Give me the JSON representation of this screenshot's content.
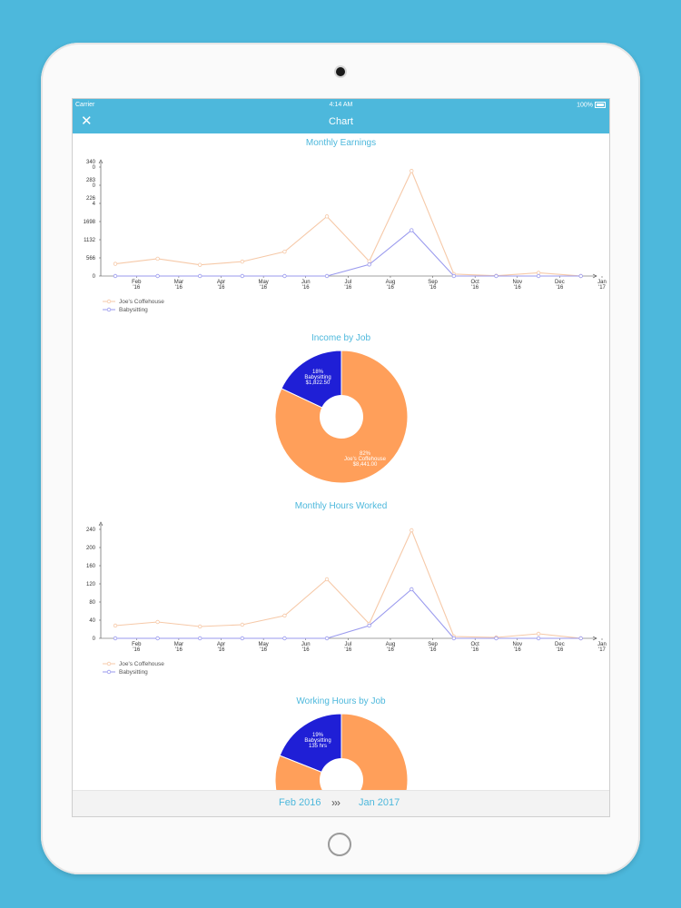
{
  "status_bar": {
    "carrier": "Carrier",
    "time": "4:14 AM",
    "battery": "100%"
  },
  "nav": {
    "title": "Chart",
    "close_icon": "close-icon"
  },
  "colors": {
    "accent": "#4db8dc",
    "coffee": "#ff9f5a",
    "coffee_line": "#f6c9a8",
    "babysit": "#1f1fd6",
    "babysit_line": "#9a9aee"
  },
  "months": [
    "Feb\n'16",
    "Mar\n'16",
    "Apr\n'16",
    "May\n'16",
    "Jun\n'16",
    "Jul\n'16",
    "Aug\n'16",
    "Sep\n'16",
    "Oct\n'16",
    "Nov\n'16",
    "Dec\n'16",
    "Jan\n'17"
  ],
  "charts": {
    "earnings": {
      "title": "Monthly Earnings",
      "y_ticks": [
        "0",
        "566",
        "1132",
        "1698",
        "226\n4",
        "283\n0",
        "340\n0"
      ],
      "legend": [
        "Joe's Coffehouse",
        "Babysitting"
      ]
    },
    "income_pie": {
      "title": "Income by Job",
      "babysit_label": "18%\nBabysitting\n$1,822.50",
      "coffee_label": "82%\nJoe's Coffehouse\n$8,441.00"
    },
    "hours": {
      "title": "Monthly Hours Worked",
      "y_ticks": [
        "0",
        "40",
        "80",
        "120",
        "160",
        "200",
        "240"
      ],
      "legend": [
        "Joe's Coffehouse",
        "Babysitting"
      ]
    },
    "hours_pie": {
      "title": "Working Hours by Job",
      "babysit_label": "19%\nBabysitting\n135 hrs"
    }
  },
  "chart_data": [
    {
      "type": "line",
      "title": "Monthly Earnings",
      "x": [
        "Feb '16",
        "Mar '16",
        "Apr '16",
        "May '16",
        "Jun '16",
        "Jul '16",
        "Aug '16",
        "Sep '16",
        "Oct '16",
        "Nov '16",
        "Dec '16",
        "Jan '17"
      ],
      "ylim": [
        0,
        3400
      ],
      "series": [
        {
          "name": "Joe's Coffehouse",
          "values": [
            380,
            540,
            350,
            450,
            760,
            1860,
            460,
            3280,
            60,
            10,
            100,
            0
          ]
        },
        {
          "name": "Babysitting",
          "values": [
            0,
            0,
            0,
            0,
            0,
            0,
            360,
            1430,
            0,
            0,
            0,
            0
          ]
        }
      ]
    },
    {
      "type": "pie",
      "title": "Income by Job",
      "labels": [
        "Babysitting",
        "Joe's Coffehouse"
      ],
      "values": [
        18,
        82
      ],
      "amounts": [
        "$1,822.50",
        "$8,441.00"
      ]
    },
    {
      "type": "line",
      "title": "Monthly Hours Worked",
      "x": [
        "Feb '16",
        "Mar '16",
        "Apr '16",
        "May '16",
        "Jun '16",
        "Jul '16",
        "Aug '16",
        "Sep '16",
        "Oct '16",
        "Nov '16",
        "Dec '16",
        "Jan '17"
      ],
      "ylim": [
        0,
        240
      ],
      "series": [
        {
          "name": "Joe's Coffehouse",
          "values": [
            28,
            36,
            26,
            30,
            50,
            130,
            32,
            238,
            4,
            2,
            10,
            0
          ]
        },
        {
          "name": "Babysitting",
          "values": [
            0,
            0,
            0,
            0,
            0,
            0,
            28,
            108,
            0,
            0,
            0,
            0
          ]
        }
      ]
    },
    {
      "type": "pie",
      "title": "Working Hours by Job",
      "labels": [
        "Babysitting",
        "Joe's Coffehouse"
      ],
      "values": [
        19,
        81
      ],
      "amounts": [
        "135 hrs",
        ""
      ]
    }
  ],
  "date_range": {
    "start": "Feb  2016",
    "separator": "›››",
    "end": "Jan  2017"
  }
}
